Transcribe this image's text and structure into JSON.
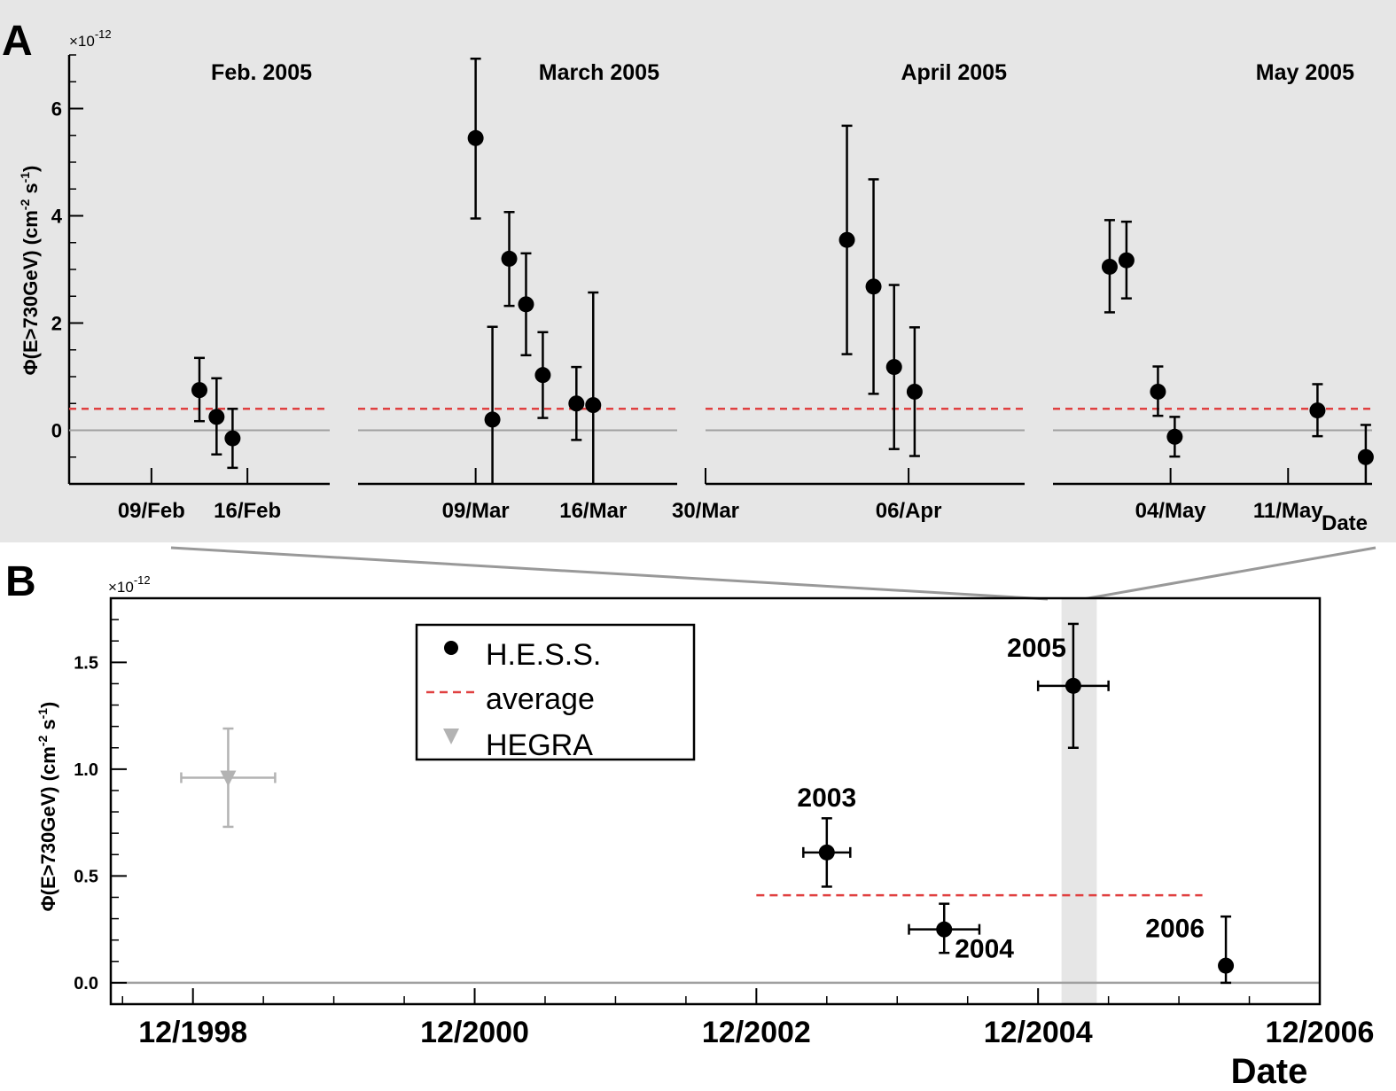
{
  "panel_a": {
    "letter": "A",
    "y_exponent": "×10",
    "y_exponent_power": "-12",
    "y_label": "Φ(E>730GeV) (cm",
    "y_label_pow1": "-2",
    "y_label_mid": " s",
    "y_label_pow2": "-1",
    "y_label_end": ")",
    "date_label": "Date",
    "colors": {
      "background": "#e6e6e6",
      "average": "#e04040",
      "zero": "#a0a0a0",
      "points": "#000000"
    }
  },
  "panel_b": {
    "letter": "B",
    "y_exponent": "×10",
    "y_exponent_power": "-12",
    "y_label": "Φ(E>730GeV) (cm",
    "y_label_pow1": "-2",
    "y_label_mid": " s",
    "y_label_pow2": "-1",
    "y_label_end": ")",
    "date_label": "Date",
    "legend": [
      {
        "label": "H.E.S.S.",
        "marker": "circle"
      },
      {
        "label": "average",
        "marker": "dashed-line"
      },
      {
        "label": "HEGRA",
        "marker": "triangle-down"
      }
    ],
    "colors": {
      "hess": "#000000",
      "hegra": "#b3b3b3",
      "average": "#e04040",
      "zero": "#a0a0a0",
      "highlight": "#e6e6e6"
    }
  },
  "chart_data": [
    {
      "type": "scatter",
      "panel": "A",
      "ylim": [
        -1,
        7
      ],
      "y_ticks": [
        0,
        2,
        4,
        6
      ],
      "y_tick_labels": [
        "0",
        "2",
        "4",
        "6"
      ],
      "y_multiplier": "1e-12",
      "average": 0.4,
      "subplots": [
        {
          "title": "Feb. 2005",
          "xlim": [
            "2005-02-03",
            "2005-02-22"
          ],
          "x_ticks": [
            [
              "2005-02-09",
              "09/Feb"
            ],
            [
              "2005-02-16",
              "16/Feb"
            ]
          ],
          "points": [
            {
              "date": "2005-02-12 12:00",
              "y": 0.75,
              "err_low": 0.58,
              "err_high": 0.6
            },
            {
              "date": "2005-02-13 18:00",
              "y": 0.25,
              "err_low": 0.7,
              "err_high": 0.72
            },
            {
              "date": "2005-02-14 22:00",
              "y": -0.15,
              "err_low": 0.55,
              "err_high": 0.55
            }
          ]
        },
        {
          "title": "March 2005",
          "xlim": [
            "2005-03-02",
            "2005-03-21"
          ],
          "x_ticks": [
            [
              "2005-03-09",
              "09/Mar"
            ],
            [
              "2005-03-16",
              "16/Mar"
            ]
          ],
          "points": [
            {
              "date": "2005-03-09",
              "y": 5.45,
              "err_low": 1.5,
              "err_high": 1.48
            },
            {
              "date": "2005-03-10",
              "y": 0.2,
              "err_low": 1.2,
              "err_high": 1.73
            },
            {
              "date": "2005-03-11",
              "y": 3.2,
              "err_low": 0.88,
              "err_high": 0.87
            },
            {
              "date": "2005-03-12",
              "y": 2.35,
              "err_low": 0.95,
              "err_high": 0.95
            },
            {
              "date": "2005-03-13",
              "y": 1.03,
              "err_low": 0.8,
              "err_high": 0.8
            },
            {
              "date": "2005-03-15",
              "y": 0.5,
              "err_low": 0.68,
              "err_high": 0.68
            },
            {
              "date": "2005-03-16",
              "y": 0.47,
              "err_low": 1.47,
              "err_high": 2.1
            }
          ]
        },
        {
          "title": "April 2005",
          "xlim": [
            "2005-03-30",
            "2005-04-10"
          ],
          "x_ticks": [
            [
              "2005-03-30",
              "30/Mar"
            ],
            [
              "2005-04-06",
              "06/Apr"
            ]
          ],
          "points": [
            {
              "date": "2005-04-03 21:00",
              "y": 3.55,
              "err_low": 2.13,
              "err_high": 2.13
            },
            {
              "date": "2005-04-04 19:00",
              "y": 2.68,
              "err_low": 2.0,
              "err_high": 2.0
            },
            {
              "date": "2005-04-05 12:00",
              "y": 1.18,
              "err_low": 1.53,
              "err_high": 1.53
            },
            {
              "date": "2005-04-06 05:00",
              "y": 0.72,
              "err_low": 1.2,
              "err_high": 1.2
            }
          ]
        },
        {
          "title": "May 2005",
          "xlim": [
            "2005-04-27",
            "2005-05-16"
          ],
          "x_ticks": [
            [
              "2005-05-04",
              "04/May"
            ],
            [
              "2005-05-11",
              "11/May"
            ]
          ],
          "points": [
            {
              "date": "2005-04-30 09:00",
              "y": 3.05,
              "err_low": 0.85,
              "err_high": 0.87
            },
            {
              "date": "2005-05-01 09:00",
              "y": 3.17,
              "err_low": 0.71,
              "err_high": 0.72
            },
            {
              "date": "2005-05-03 06:00",
              "y": 0.72,
              "err_low": 0.45,
              "err_high": 0.47
            },
            {
              "date": "2005-05-04 06:00",
              "y": -0.12,
              "err_low": 0.37,
              "err_high": 0.37
            },
            {
              "date": "2005-05-12 18:00",
              "y": 0.37,
              "err_low": 0.48,
              "err_high": 0.49
            },
            {
              "date": "2005-05-15 15:00",
              "y": -0.5,
              "err_low": 0.5,
              "err_high": 0.6
            }
          ]
        }
      ]
    },
    {
      "type": "scatter",
      "panel": "B",
      "xlim": [
        "1998-05",
        "2006-12"
      ],
      "ylim": [
        -0.1,
        1.8
      ],
      "y_ticks": [
        0.0,
        0.5,
        1.0,
        1.5
      ],
      "y_tick_labels": [
        "0.0",
        "0.5",
        "1.0",
        "1.5"
      ],
      "y_multiplier": "1e-12",
      "x_ticks": [
        [
          "1998-12",
          "12/1998"
        ],
        [
          "2000-12",
          "12/2000"
        ],
        [
          "2002-12",
          "12/2002"
        ],
        [
          "2004-12",
          "12/2004"
        ],
        [
          "2006-12",
          "12/2006"
        ]
      ],
      "highlight_range": [
        "2005-02",
        "2005-05"
      ],
      "average": {
        "y": 0.41,
        "x_range": [
          "2002-12",
          "2006-02"
        ]
      },
      "series": [
        {
          "name": "H.E.S.S.",
          "points": [
            {
              "date": "2003-06",
              "label": "2003",
              "y": 0.61,
              "err_low": 0.16,
              "err_high": 0.16,
              "x_err_months": 2
            },
            {
              "date": "2004-04",
              "label": "2004",
              "y": 0.25,
              "err_low": 0.11,
              "err_high": 0.12,
              "x_err_months": 3
            },
            {
              "date": "2005-03",
              "label": "2005",
              "y": 1.39,
              "err_low": 0.29,
              "err_high": 0.29,
              "x_err_months": 3
            },
            {
              "date": "2006-04",
              "label": "2006",
              "y": 0.08,
              "err_low": 0.08,
              "err_high": 0.23,
              "x_err_months": 0
            }
          ]
        },
        {
          "name": "HEGRA",
          "points": [
            {
              "date": "1999-03",
              "y": 0.96,
              "err_low": 0.23,
              "err_high": 0.23,
              "x_err_months": 4
            }
          ]
        }
      ]
    }
  ]
}
